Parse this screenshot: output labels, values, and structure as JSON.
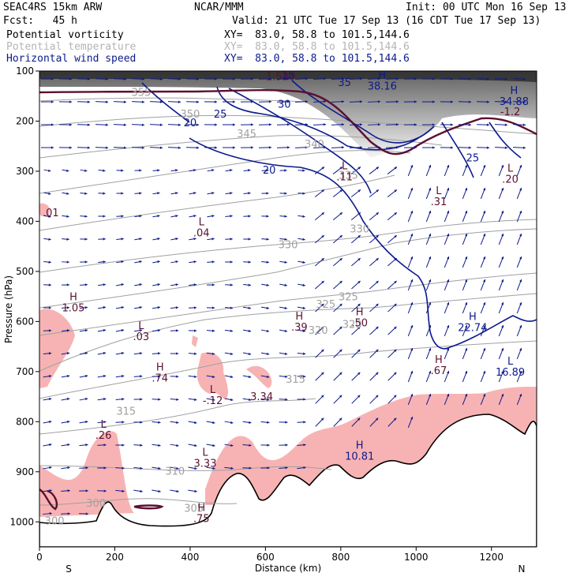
{
  "header": {
    "line1_left": "SEAC4RS 15km ARW",
    "line1_mid": "NCAR/MMM",
    "line1_right": "Init: 00 UTC Mon 16 Sep 13",
    "line2_left": "Fcst:   45 h",
    "line2_right": "Valid: 21 UTC Tue 17 Sep 13 (16 CDT Tue 17 Sep 13)",
    "fields": [
      {
        "name": "Potential vorticity",
        "xy": "XY=  83.0, 58.8 to 101.5,144.6",
        "color": "#000000"
      },
      {
        "name": "Potential temperature",
        "xy": "XY=  83.0, 58.8 to 101.5,144.6",
        "color": "#b4b4b4"
      },
      {
        "name": "Horizontal wind speed",
        "xy": "XY=  83.0, 58.8 to 101.5,144.6",
        "color": "#0c1a8c"
      }
    ]
  },
  "chart_data": {
    "type": "heatmap",
    "subtype": "vertical cross-section",
    "xlabel": "Distance (km)",
    "ylabel": "Pressure (hPa)",
    "xlim": [
      0,
      1320
    ],
    "ylim": [
      1050,
      100
    ],
    "x_ticks": [
      "0",
      "200",
      "400",
      "600",
      "800",
      "1000",
      "1200"
    ],
    "x_tick_values": [
      0,
      200,
      400,
      600,
      800,
      1000,
      1200
    ],
    "y_ticks": [
      "100",
      "200",
      "300",
      "400",
      "500",
      "600",
      "700",
      "800",
      "900",
      "1000"
    ],
    "y_tick_values": [
      100,
      200,
      300,
      400,
      500,
      600,
      700,
      800,
      900,
      1000
    ],
    "x_end_labels": {
      "left": "S",
      "right": "N"
    },
    "colors": {
      "terrain": "#000000",
      "pv_contour": "#5c1030",
      "theta": "#a0a0a0",
      "wind_speed": "#0c1a8c",
      "rh_shade": "#f7b3b3",
      "pv_shade": "#555555",
      "vectors": "#0c1a8c"
    },
    "theta_labels": [
      {
        "text": "355",
        "x": 270,
        "p": 150
      },
      {
        "text": "350",
        "x": 400,
        "p": 193
      },
      {
        "text": "345",
        "x": 550,
        "p": 232
      },
      {
        "text": "340",
        "x": 730,
        "p": 253
      },
      {
        "text": "335",
        "x": 820,
        "p": 315
      },
      {
        "text": "330",
        "x": 850,
        "p": 422
      },
      {
        "text": "330",
        "x": 660,
        "p": 454
      },
      {
        "text": "325",
        "x": 820,
        "p": 558
      },
      {
        "text": "325",
        "x": 760,
        "p": 573
      },
      {
        "text": "320",
        "x": 830,
        "p": 613
      },
      {
        "text": "320",
        "x": 740,
        "p": 625
      },
      {
        "text": "315",
        "x": 680,
        "p": 722
      },
      {
        "text": "315",
        "x": 230,
        "p": 786
      },
      {
        "text": "310",
        "x": 360,
        "p": 906
      },
      {
        "text": "305",
        "x": 410,
        "p": 980
      },
      {
        "text": "300",
        "x": 150,
        "p": 970
      },
      {
        "text": "300",
        "x": 40,
        "p": 1005
      }
    ],
    "wind_labels": [
      {
        "text": "20",
        "x": 400,
        "p": 210
      },
      {
        "text": "25",
        "x": 480,
        "p": 193
      },
      {
        "text": "20",
        "x": 610,
        "p": 305
      },
      {
        "text": "30",
        "x": 650,
        "p": 173
      },
      {
        "text": "35",
        "x": 810,
        "p": 130
      },
      {
        "text": "25",
        "x": 1150,
        "p": 280
      },
      {
        "text": "15",
        "x": 660,
        "p": 115
      }
    ],
    "extrema": [
      {
        "kind": "H",
        "value": "38.16",
        "x": 910,
        "p": 137
      },
      {
        "kind": "H",
        "value": "34.88",
        "x": 1260,
        "p": 168
      },
      {
        "kind": "L",
        "value": ".11",
        "x": 810,
        "p": 318
      },
      {
        "kind": "L",
        "value": ".31",
        "x": 1060,
        "p": 368
      },
      {
        "kind": "L",
        "value": ".20",
        "x": 1250,
        "p": 323
      },
      {
        "kind": "L",
        "value": ".04",
        "x": 430,
        "p": 430
      },
      {
        "kind": "H",
        "value": "1.05",
        "x": 90,
        "p": 580
      },
      {
        "kind": "L",
        "value": ".03",
        "x": 270,
        "p": 637
      },
      {
        "kind": "H",
        "value": ".39",
        "x": 690,
        "p": 618
      },
      {
        "kind": "H",
        "value": ".50",
        "x": 850,
        "p": 610
      },
      {
        "kind": "H",
        "value": "22.74",
        "x": 1150,
        "p": 619
      },
      {
        "kind": "H",
        "value": ".74",
        "x": 320,
        "p": 720
      },
      {
        "kind": "L",
        "value": "-.12",
        "x": 460,
        "p": 765
      },
      {
        "kind": "L",
        "value": ".26",
        "x": 170,
        "p": 834
      },
      {
        "kind": "H",
        "value": ".67",
        "x": 1060,
        "p": 705
      },
      {
        "kind": "L",
        "value": "16.89",
        "x": 1250,
        "p": 708
      },
      {
        "kind": "H",
        "value": "10.81",
        "x": 850,
        "p": 876
      },
      {
        "kind": "L",
        "value": "3.33",
        "x": 440,
        "p": 890
      },
      {
        "kind": "H",
        "value": ".75",
        "x": 430,
        "p": 1000
      }
    ],
    "misc_labels": [
      {
        "text": ".01",
        "x": 30,
        "p": 390
      },
      {
        "text": "3.34",
        "x": 590,
        "p": 757
      },
      {
        "text": "1.530",
        "x": 640,
        "p": 118
      },
      {
        "text": "-1.2",
        "x": 1250,
        "p": 188
      }
    ]
  }
}
